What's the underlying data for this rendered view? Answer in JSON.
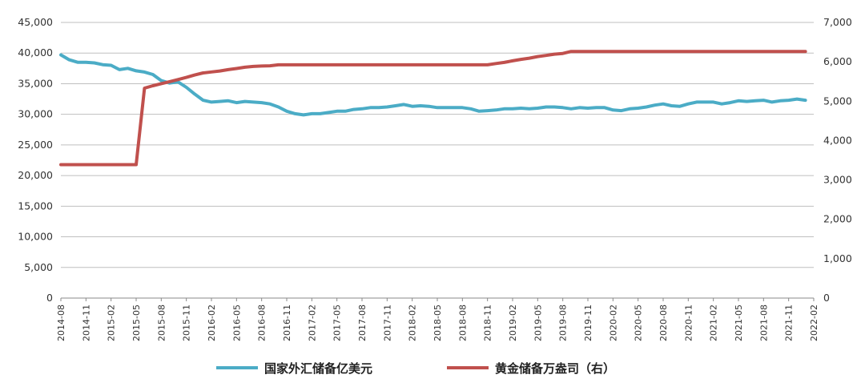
{
  "chart_data": {
    "type": "line",
    "y_left": {
      "ticks": [
        "0",
        "5,000",
        "10,000",
        "15,000",
        "20,000",
        "25,000",
        "30,000",
        "35,000",
        "40,000",
        "45,000"
      ],
      "lim": [
        0,
        45000
      ]
    },
    "y_right": {
      "ticks": [
        "0",
        "1,000",
        "2,000",
        "3,000",
        "4,000",
        "5,000",
        "6,000",
        "7,000"
      ],
      "lim": [
        0,
        7000
      ]
    },
    "x_ticks": [
      "2014-08",
      "2014-11",
      "2015-02",
      "2015-05",
      "2015-08",
      "2015-11",
      "2016-02",
      "2016-05",
      "2016-08",
      "2016-11",
      "2017-02",
      "2017-05",
      "2017-08",
      "2017-11",
      "2018-02",
      "2018-05",
      "2018-08",
      "2018-11",
      "2019-02",
      "2019-05",
      "2019-08",
      "2019-11",
      "2020-02",
      "2020-05",
      "2020-08",
      "2020-11",
      "2021-02",
      "2021-05",
      "2021-08",
      "2021-11",
      "2022-02"
    ],
    "grid": "horizontal",
    "legend_position": "bottom",
    "series": [
      {
        "name": "国家外汇储备亿美元",
        "axis": "left",
        "color": "#4bacc6",
        "x": [
          "2014-08",
          "2014-09",
          "2014-10",
          "2014-11",
          "2014-12",
          "2015-01",
          "2015-02",
          "2015-03",
          "2015-04",
          "2015-05",
          "2015-06",
          "2015-07",
          "2015-08",
          "2015-09",
          "2015-10",
          "2015-11",
          "2015-12",
          "2016-01",
          "2016-02",
          "2016-03",
          "2016-04",
          "2016-05",
          "2016-06",
          "2016-07",
          "2016-08",
          "2016-09",
          "2016-10",
          "2016-11",
          "2016-12",
          "2017-01",
          "2017-02",
          "2017-03",
          "2017-04",
          "2017-05",
          "2017-06",
          "2017-07",
          "2017-08",
          "2017-09",
          "2017-10",
          "2017-11",
          "2017-12",
          "2018-01",
          "2018-02",
          "2018-03",
          "2018-04",
          "2018-05",
          "2018-06",
          "2018-07",
          "2018-08",
          "2018-09",
          "2018-10",
          "2018-11",
          "2018-12",
          "2019-01",
          "2019-02",
          "2019-03",
          "2019-04",
          "2019-05",
          "2019-06",
          "2019-07",
          "2019-08",
          "2019-09",
          "2019-10",
          "2019-11",
          "2019-12",
          "2020-01",
          "2020-02",
          "2020-03",
          "2020-04",
          "2020-05",
          "2020-06",
          "2020-07",
          "2020-08",
          "2020-09",
          "2020-10",
          "2020-11",
          "2020-12",
          "2021-01",
          "2021-02",
          "2021-03",
          "2021-04",
          "2021-05",
          "2021-06",
          "2021-07",
          "2021-08",
          "2021-09",
          "2021-10",
          "2021-11",
          "2021-12",
          "2022-01"
        ],
        "values": [
          39700,
          38900,
          38500,
          38500,
          38400,
          38100,
          38000,
          37300,
          37500,
          37100,
          36900,
          36500,
          35500,
          35100,
          35300,
          34400,
          33300,
          32300,
          32000,
          32100,
          32200,
          31900,
          32100,
          32000,
          31900,
          31700,
          31200,
          30500,
          30100,
          29900,
          30100,
          30100,
          30300,
          30500,
          30500,
          30800,
          30900,
          31100,
          31100,
          31200,
          31400,
          31600,
          31300,
          31400,
          31300,
          31100,
          31100,
          31100,
          31100,
          30900,
          30500,
          30600,
          30700,
          30900,
          30900,
          31000,
          30900,
          31000,
          31200,
          31200,
          31100,
          30900,
          31100,
          31000,
          31100,
          31100,
          30700,
          30600,
          30900,
          31000,
          31200,
          31500,
          31700,
          31400,
          31300,
          31700,
          32000,
          32000,
          32000,
          31700,
          31900,
          32200,
          32100,
          32200,
          32300,
          32000,
          32200,
          32300,
          32500,
          32300
        ]
      },
      {
        "name": "黄金储备万盎司（右）",
        "axis": "right",
        "color": "#c0504d",
        "x": [
          "2014-08",
          "2015-05",
          "2015-06",
          "2015-07",
          "2015-08",
          "2015-09",
          "2015-10",
          "2015-11",
          "2015-12",
          "2016-01",
          "2016-02",
          "2016-03",
          "2016-04",
          "2016-05",
          "2016-06",
          "2016-07",
          "2016-08",
          "2016-09",
          "2016-10",
          "2018-11",
          "2018-12",
          "2019-01",
          "2019-02",
          "2019-03",
          "2019-04",
          "2019-05",
          "2019-06",
          "2019-07",
          "2019-08",
          "2019-09",
          "2022-01"
        ],
        "values": [
          3389,
          3389,
          5331,
          5393,
          5445,
          5496,
          5549,
          5605,
          5666,
          5719,
          5742,
          5767,
          5801,
          5829,
          5862,
          5882,
          5894,
          5900,
          5924,
          5924,
          5956,
          5984,
          6026,
          6061,
          6092,
          6133,
          6161,
          6194,
          6213,
          6264,
          6264
        ]
      }
    ]
  }
}
